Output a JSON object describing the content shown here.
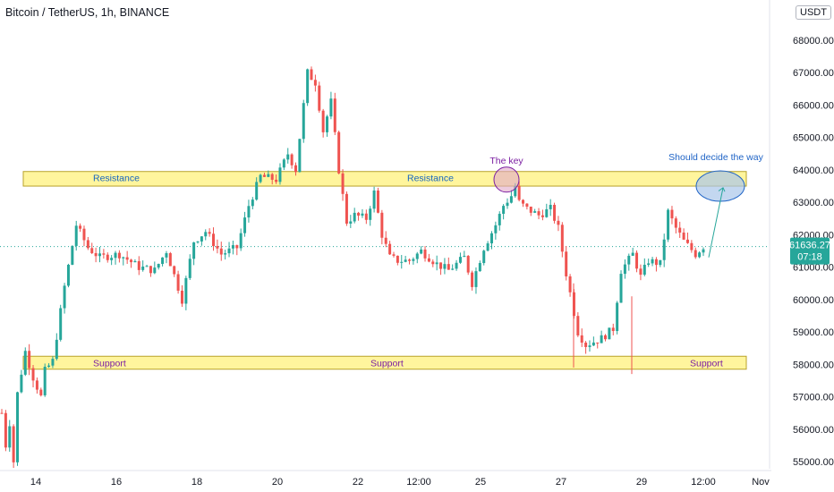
{
  "header": {
    "title": "Bitcoin / TetherUS, 1h, BINANCE",
    "currency": "USDT"
  },
  "price_label": {
    "price": "61636.27",
    "countdown": "07:18",
    "color": "#26a69a"
  },
  "colors": {
    "up": "#26a69a",
    "down": "#ef5350",
    "zone_fill": "#fff59d",
    "zone_stroke": "#b8a22a",
    "key_text": "#7b1fa2",
    "key_ellipse_fill": "#e1a9c8",
    "decide_text": "#1e63c6",
    "decide_ellipse_fill": "#a9c6ea",
    "zone_text": "#1565c0",
    "support_text": "#7b1fa2"
  },
  "chart_data": {
    "type": "candlestick",
    "title": "Bitcoin / TetherUS, 1h, BINANCE",
    "ylim": [
      54700,
      69200
    ],
    "y_ticks": [
      "55000.00",
      "56000.00",
      "57000.00",
      "58000.00",
      "59000.00",
      "60000.00",
      "61000.00",
      "62000.00",
      "63000.00",
      "64000.00",
      "65000.00",
      "66000.00",
      "67000.00",
      "68000.00"
    ],
    "x_ticks": [
      "14",
      "16",
      "18",
      "20",
      "22",
      "12:00",
      "25",
      "27",
      "29",
      "12:00",
      "Nov"
    ],
    "last_price": 61636.27,
    "key_points": [
      [
        0,
        56500
      ],
      [
        1,
        55500
      ],
      [
        2,
        56200
      ],
      [
        3,
        55000
      ],
      [
        4,
        57100
      ],
      [
        6,
        58400
      ],
      [
        8,
        57600
      ],
      [
        10,
        57000
      ],
      [
        11,
        57800
      ],
      [
        13,
        58100
      ],
      [
        16,
        60400
      ],
      [
        19,
        62300
      ],
      [
        22,
        61600
      ],
      [
        25,
        61300
      ],
      [
        30,
        61400
      ],
      [
        35,
        61000
      ],
      [
        39,
        60900
      ],
      [
        42,
        61500
      ],
      [
        46,
        60000
      ],
      [
        49,
        61800
      ],
      [
        52,
        62100
      ],
      [
        56,
        61400
      ],
      [
        60,
        61600
      ],
      [
        63,
        62900
      ],
      [
        66,
        63800
      ],
      [
        70,
        63700
      ],
      [
        73,
        64500
      ],
      [
        75,
        64000
      ],
      [
        78,
        67000
      ],
      [
        80,
        66700
      ],
      [
        82,
        65200
      ],
      [
        84,
        66100
      ],
      [
        86,
        64000
      ],
      [
        88,
        62400
      ],
      [
        90,
        62600
      ],
      [
        93,
        62500
      ],
      [
        95,
        63300
      ],
      [
        97,
        62000
      ],
      [
        99,
        61300
      ],
      [
        101,
        61200
      ],
      [
        104,
        61200
      ],
      [
        107,
        61500
      ],
      [
        111,
        61100
      ],
      [
        114,
        60900
      ],
      [
        118,
        61300
      ],
      [
        120,
        60500
      ],
      [
        123,
        61600
      ],
      [
        126,
        62300
      ],
      [
        128,
        62900
      ],
      [
        130,
        63200
      ],
      [
        131,
        63500
      ],
      [
        132,
        63000
      ],
      [
        134,
        62800
      ],
      [
        137,
        62600
      ],
      [
        140,
        62800
      ],
      [
        142,
        62200
      ],
      [
        144,
        60800
      ],
      [
        147,
        59000
      ],
      [
        149,
        58600
      ],
      [
        153,
        58800
      ],
      [
        156,
        59100
      ],
      [
        158,
        60900
      ],
      [
        161,
        61400
      ],
      [
        163,
        60700
      ],
      [
        165,
        61200
      ],
      [
        168,
        61100
      ],
      [
        170,
        62700
      ],
      [
        172,
        62200
      ],
      [
        174,
        61800
      ],
      [
        177,
        61400
      ],
      [
        179,
        61636.27
      ]
    ],
    "annotations": [
      {
        "label": "Resistance",
        "type": "zone",
        "range": [
          63500,
          63950
        ]
      },
      {
        "label": "Resistance",
        "type": "zone",
        "range": [
          63500,
          63950
        ]
      },
      {
        "label": "Support",
        "type": "zone",
        "range": [
          57850,
          58250
        ]
      },
      {
        "label": "Support",
        "type": "zone",
        "range": [
          57850,
          58250
        ]
      },
      {
        "label": "Support",
        "type": "zone",
        "range": [
          57850,
          58250
        ]
      },
      {
        "label": "The key",
        "type": "ellipse"
      },
      {
        "label": "Should decide the way",
        "type": "ellipse"
      }
    ]
  }
}
